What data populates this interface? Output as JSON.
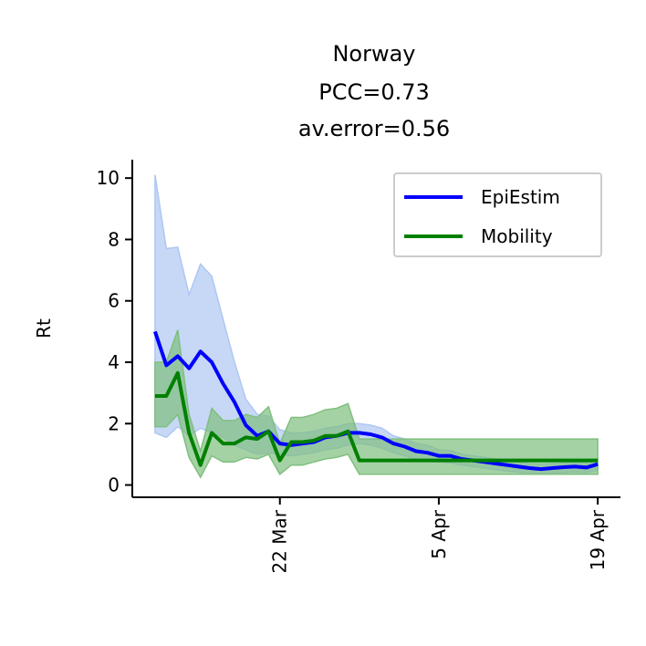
{
  "chart_data": {
    "type": "line",
    "title_lines": [
      "Norway",
      "PCC=0.73",
      "av.error=0.56"
    ],
    "xlabel": "",
    "ylabel": "Rt",
    "x_ticks": [
      {
        "label": "22 Mar",
        "day": "2020-03-22"
      },
      {
        "label": "5 Apr",
        "day": "2020-04-05"
      },
      {
        "label": "19 Apr",
        "day": "2020-04-19"
      }
    ],
    "xlim": [
      "2020-03-09",
      "2020-04-21"
    ],
    "y_ticks": [
      0,
      2,
      4,
      6,
      8,
      10
    ],
    "ylim": [
      -0.4,
      10.6
    ],
    "legend": {
      "position": "top-right"
    },
    "grid": false,
    "x": [
      "2020-03-11",
      "2020-03-12",
      "2020-03-13",
      "2020-03-14",
      "2020-03-15",
      "2020-03-16",
      "2020-03-17",
      "2020-03-18",
      "2020-03-19",
      "2020-03-20",
      "2020-03-21",
      "2020-03-22",
      "2020-03-23",
      "2020-03-24",
      "2020-03-25",
      "2020-03-26",
      "2020-03-27",
      "2020-03-28",
      "2020-03-29",
      "2020-03-30",
      "2020-03-31",
      "2020-04-01",
      "2020-04-02",
      "2020-04-03",
      "2020-04-04",
      "2020-04-05",
      "2020-04-06",
      "2020-04-07",
      "2020-04-08",
      "2020-04-09",
      "2020-04-10",
      "2020-04-11",
      "2020-04-12",
      "2020-04-13",
      "2020-04-14",
      "2020-04-15",
      "2020-04-16",
      "2020-04-17",
      "2020-04-18",
      "2020-04-19"
    ],
    "series": [
      {
        "name": "EpiEstim",
        "color": "#0000ff",
        "band_color": "#aec7f2",
        "values": [
          5.0,
          3.9,
          4.2,
          3.8,
          4.35,
          4.0,
          3.3,
          2.7,
          1.95,
          1.6,
          1.75,
          1.35,
          1.3,
          1.35,
          1.4,
          1.55,
          1.6,
          1.7,
          1.7,
          1.65,
          1.55,
          1.35,
          1.25,
          1.1,
          1.05,
          0.95,
          0.95,
          0.85,
          0.8,
          0.75,
          0.7,
          0.65,
          0.6,
          0.55,
          0.52,
          0.55,
          0.58,
          0.6,
          0.57,
          0.68
        ],
        "lower": [
          1.7,
          1.55,
          1.9,
          1.6,
          1.85,
          1.7,
          1.55,
          1.3,
          1.15,
          1.0,
          1.05,
          1.0,
          0.95,
          1.0,
          1.05,
          1.15,
          1.2,
          1.3,
          1.35,
          1.3,
          1.2,
          1.05,
          0.95,
          0.85,
          0.8,
          0.75,
          0.72,
          0.65,
          0.6,
          0.55,
          0.5,
          0.45,
          0.42,
          0.38,
          0.36,
          0.38,
          0.4,
          0.42,
          0.4,
          0.48
        ],
        "upper": [
          10.1,
          7.7,
          7.75,
          6.2,
          7.2,
          6.8,
          5.4,
          4.0,
          2.8,
          2.3,
          2.25,
          1.8,
          1.7,
          1.7,
          1.75,
          1.85,
          1.9,
          2.0,
          2.0,
          1.95,
          1.85,
          1.6,
          1.5,
          1.35,
          1.3,
          1.15,
          1.12,
          1.0,
          0.95,
          0.9,
          0.85,
          0.8,
          0.75,
          0.7,
          0.68,
          0.7,
          0.72,
          0.75,
          0.72,
          0.85
        ]
      },
      {
        "name": "Mobility",
        "color": "#008000",
        "band_color": "#7fbf7f",
        "values": [
          2.9,
          2.9,
          3.65,
          1.7,
          0.65,
          1.7,
          1.35,
          1.35,
          1.55,
          1.5,
          1.75,
          0.8,
          1.4,
          1.4,
          1.45,
          1.6,
          1.6,
          1.75,
          0.8,
          0.8,
          0.8,
          0.8,
          0.8,
          0.8,
          0.8,
          0.8,
          0.8,
          0.8,
          0.8,
          0.8,
          0.8,
          0.8,
          0.8,
          0.8,
          0.8,
          0.8,
          0.8,
          0.8,
          0.8,
          0.8
        ],
        "lower": [
          1.9,
          1.9,
          2.3,
          0.9,
          0.25,
          0.95,
          0.75,
          0.75,
          0.9,
          0.85,
          1.0,
          0.35,
          0.65,
          0.65,
          0.75,
          0.85,
          0.9,
          1.0,
          0.35,
          0.35,
          0.35,
          0.35,
          0.35,
          0.35,
          0.35,
          0.35,
          0.35,
          0.35,
          0.35,
          0.35,
          0.35,
          0.35,
          0.35,
          0.35,
          0.35,
          0.35,
          0.35,
          0.35,
          0.35,
          0.35
        ],
        "upper": [
          4.0,
          4.0,
          5.05,
          2.3,
          1.1,
          2.5,
          2.1,
          2.1,
          2.3,
          2.2,
          2.55,
          1.35,
          2.2,
          2.2,
          2.3,
          2.45,
          2.5,
          2.65,
          1.5,
          1.5,
          1.5,
          1.5,
          1.5,
          1.5,
          1.5,
          1.5,
          1.5,
          1.5,
          1.5,
          1.5,
          1.5,
          1.5,
          1.5,
          1.5,
          1.5,
          1.5,
          1.5,
          1.5,
          1.5,
          1.5
        ]
      }
    ]
  }
}
